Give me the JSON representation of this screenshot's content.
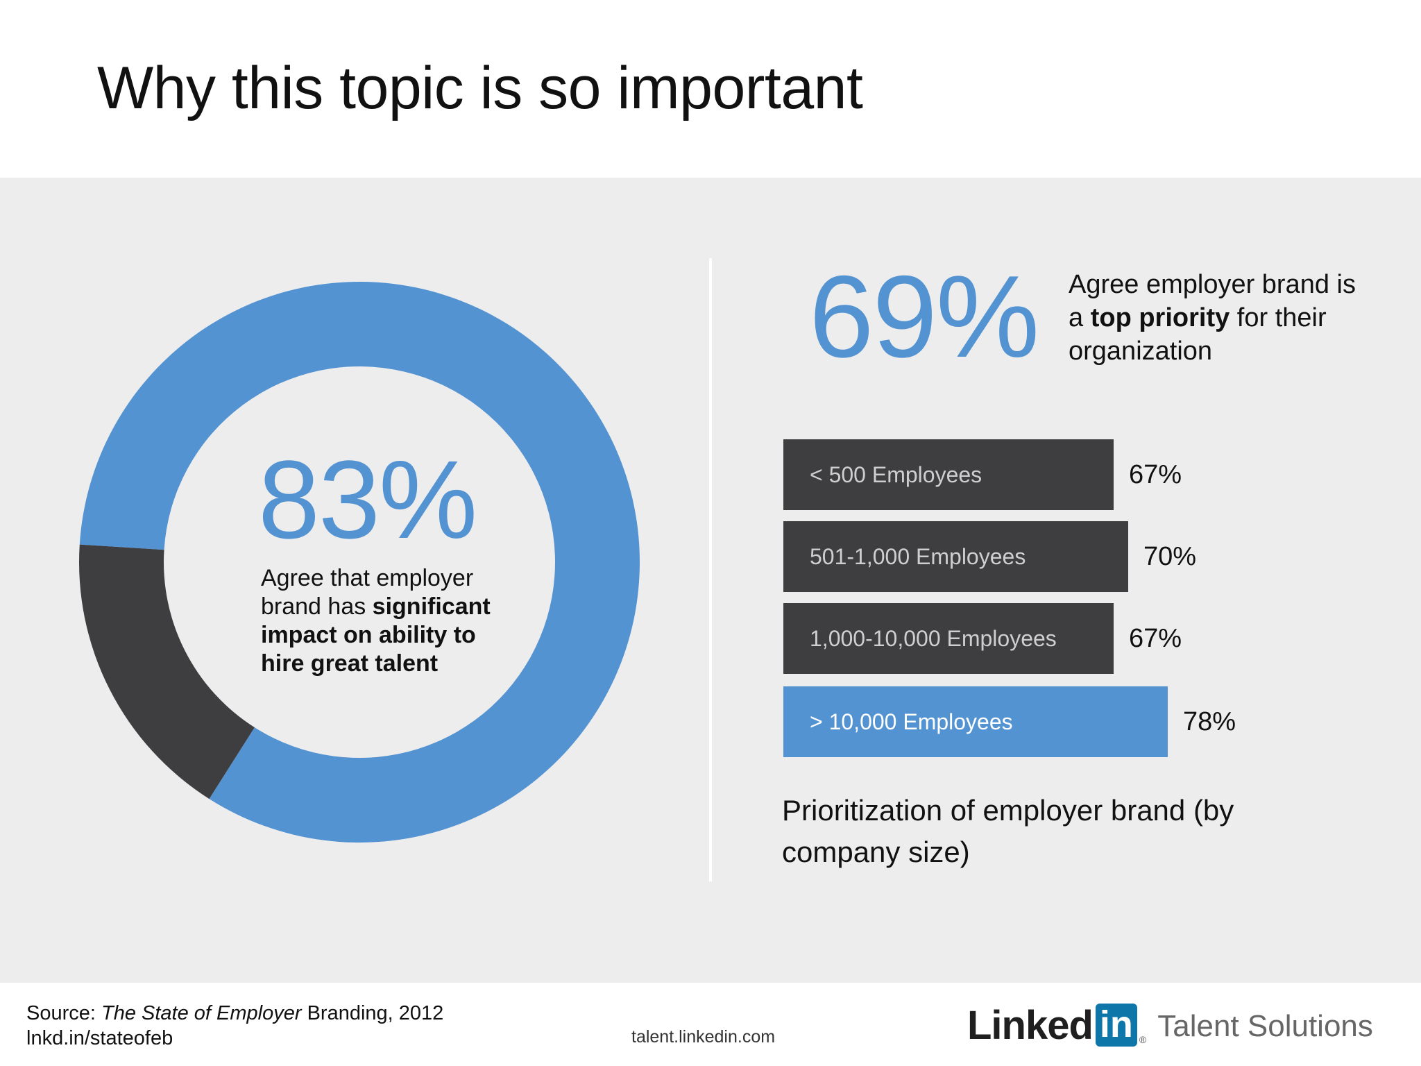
{
  "slide": {
    "title": "Why this topic is so important"
  },
  "donut": {
    "value_label": "83%",
    "caption_pre": "Agree that employer brand has ",
    "caption_bold": "significant impact on ability to hire great talent"
  },
  "big_stat": {
    "value_label": "69%",
    "caption_pre": "Agree employer brand is a ",
    "caption_bold": "top priority",
    "caption_post": " for their organization"
  },
  "bar_chart": {
    "title": "Prioritization of employer brand (by company size)"
  },
  "footer": {
    "source_prefix": "Source: ",
    "source_title": "The State of Employer",
    "source_suffix": " Branding, 2012",
    "short_link": "lnkd.in/stateofeb",
    "site_url": "talent.linkedin.com",
    "logo_linked": "Linked",
    "logo_in": "in",
    "logo_dot": "®",
    "logo_sub": "Talent Solutions"
  },
  "colors": {
    "accent": "#5493d2",
    "dark": "#3e3e40",
    "panel": "#ededee"
  },
  "chart_data": [
    {
      "type": "pie",
      "categories": [
        "",
        ""
      ],
      "values": [
        83,
        17
      ],
      "colors": [
        "#5493d2",
        "#3e3e40"
      ],
      "center_label": "83%"
    },
    {
      "type": "bar",
      "orientation": "horizontal",
      "categories": [
        "< 500 Employees",
        "501-1,000 Employees",
        "1,000-10,000 Employees",
        "> 10,000 Employees"
      ],
      "values": [
        67,
        70,
        67,
        78
      ],
      "value_labels": [
        "67%",
        "70%",
        "67%",
        "78%"
      ],
      "highlight_index": 3,
      "title": "Prioritization of employer brand (by company size)",
      "xlim": [
        0,
        100
      ]
    }
  ]
}
